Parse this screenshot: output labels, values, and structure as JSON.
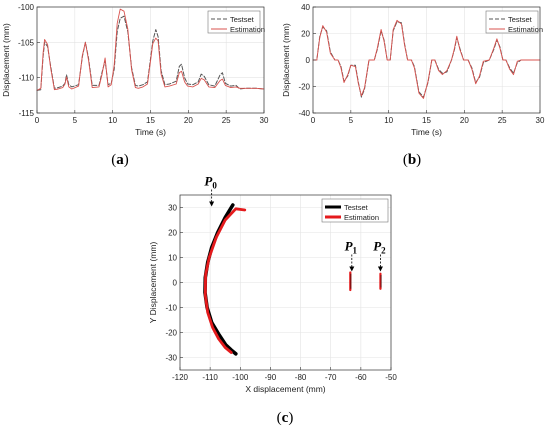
{
  "chart_data": [
    {
      "panel": "(a)",
      "type": "line",
      "xlabel": "Time (s)",
      "ylabel": "Displacement (mm)",
      "xlim": [
        0,
        30
      ],
      "ylim": [
        -115,
        -100
      ],
      "xticks": [
        "0",
        "5",
        "10",
        "15",
        "20",
        "25",
        "30"
      ],
      "yticks": [
        "-115",
        "-110",
        "-105",
        "-100"
      ],
      "grid": true,
      "legend_position": "top-right",
      "series": [
        {
          "name": "Testset",
          "style": "dashed",
          "color": "#555555",
          "x": [
            0,
            0.5,
            0.8,
            1.0,
            1.4,
            1.8,
            2.3,
            2.8,
            3.4,
            3.7,
            3.9,
            4.2,
            4.6,
            5.5,
            6.0,
            6.4,
            6.8,
            7.3,
            8.2,
            8.6,
            9.0,
            9.4,
            9.8,
            10.2,
            10.6,
            11.0,
            11.5,
            12.0,
            12.5,
            13.0,
            13.4,
            14.0,
            14.6,
            15.3,
            15.7,
            16.0,
            16.4,
            16.9,
            17.5,
            18.4,
            18.8,
            19.1,
            19.5,
            19.9,
            20.6,
            21.3,
            21.7,
            22.1,
            22.7,
            23.5,
            24.2,
            24.5,
            24.9,
            25.6,
            26.3,
            26.8,
            27.5,
            29.0,
            30.0
          ],
          "y": [
            -111.8,
            -111.7,
            -107.0,
            -105.0,
            -105.6,
            -108.3,
            -111.5,
            -111.4,
            -111.2,
            -110.8,
            -109.6,
            -111.0,
            -111.3,
            -111.0,
            -107.0,
            -105.0,
            -107.2,
            -111.1,
            -111.1,
            -109.2,
            -107.6,
            -111.0,
            -110.8,
            -108.8,
            -103.5,
            -101.6,
            -101.3,
            -103.5,
            -108.6,
            -111.1,
            -111.2,
            -111.0,
            -110.6,
            -104.8,
            -103.2,
            -104.2,
            -109.0,
            -111.0,
            -110.9,
            -110.5,
            -108.4,
            -108.1,
            -110.0,
            -110.9,
            -111.0,
            -110.6,
            -109.5,
            -109.8,
            -111.0,
            -111.2,
            -109.6,
            -109.3,
            -110.8,
            -111.2,
            -111.1,
            -111.6,
            -111.5,
            -111.5,
            -111.6
          ]
        },
        {
          "name": "Estimation",
          "style": "solid",
          "color": "#d9534f",
          "x": [
            0,
            0.5,
            0.8,
            1.0,
            1.4,
            1.8,
            2.3,
            2.8,
            3.4,
            3.7,
            3.9,
            4.2,
            4.6,
            5.5,
            6.0,
            6.4,
            6.8,
            7.3,
            8.2,
            8.6,
            9.0,
            9.4,
            9.8,
            10.2,
            10.6,
            11.0,
            11.5,
            12.0,
            12.5,
            13.0,
            13.4,
            14.0,
            14.6,
            15.3,
            15.7,
            16.0,
            16.4,
            16.9,
            17.5,
            18.4,
            18.8,
            19.1,
            19.5,
            19.9,
            20.6,
            21.3,
            21.7,
            22.1,
            22.7,
            23.5,
            24.2,
            24.5,
            24.9,
            25.6,
            26.3,
            26.8,
            27.5,
            29.0,
            30.0
          ],
          "y": [
            -111.8,
            -111.5,
            -106.5,
            -104.6,
            -105.3,
            -108.6,
            -111.7,
            -111.6,
            -111.4,
            -110.9,
            -109.9,
            -111.3,
            -111.6,
            -111.2,
            -106.8,
            -105.0,
            -107.5,
            -111.4,
            -111.3,
            -109.5,
            -107.2,
            -111.3,
            -111.0,
            -108.2,
            -102.3,
            -100.3,
            -100.6,
            -103.1,
            -108.9,
            -111.4,
            -111.5,
            -111.3,
            -110.9,
            -105.2,
            -104.4,
            -104.8,
            -109.5,
            -111.3,
            -111.2,
            -110.9,
            -109.3,
            -109.1,
            -110.6,
            -111.2,
            -111.3,
            -110.9,
            -110.1,
            -110.3,
            -111.3,
            -111.4,
            -110.4,
            -110.2,
            -111.1,
            -111.4,
            -111.3,
            -111.5,
            -111.5,
            -111.5,
            -111.6
          ]
        }
      ]
    },
    {
      "panel": "(b)",
      "type": "line",
      "xlabel": "Time (s)",
      "ylabel": "Displacement (mm)",
      "xlim": [
        0,
        30
      ],
      "ylim": [
        -40,
        40
      ],
      "xticks": [
        "0",
        "5",
        "10",
        "15",
        "20",
        "25",
        "30"
      ],
      "yticks": [
        "-40",
        "-20",
        "0",
        "20",
        "40"
      ],
      "grid": true,
      "legend_position": "top-right",
      "series": [
        {
          "name": "Testset",
          "style": "dashed",
          "color": "#555555",
          "x": [
            0,
            0.5,
            0.9,
            1.3,
            1.8,
            2.3,
            2.9,
            3.3,
            3.7,
            4.1,
            4.6,
            5.0,
            5.6,
            6.0,
            6.4,
            6.8,
            7.4,
            8.1,
            8.5,
            9.0,
            9.4,
            9.8,
            10.2,
            10.6,
            11.1,
            11.7,
            12.1,
            12.5,
            13.0,
            13.4,
            14.0,
            14.6,
            15.2,
            15.7,
            16.1,
            16.6,
            17.1,
            17.7,
            18.3,
            18.7,
            19.0,
            19.4,
            19.9,
            20.5,
            21.0,
            21.5,
            22.0,
            22.5,
            23.3,
            23.9,
            24.3,
            24.7,
            25.1,
            25.5,
            26.0,
            26.5,
            27.0,
            27.5,
            28.0,
            29.0,
            30.0
          ],
          "y": [
            0,
            0,
            18,
            25,
            22,
            6,
            0,
            0,
            -5,
            -16,
            -12,
            -4,
            -4,
            -17,
            -28,
            -22,
            0,
            0,
            8,
            22,
            15,
            0,
            0,
            22,
            29,
            28,
            12,
            0,
            0,
            -5,
            -24,
            -28,
            -17,
            0,
            0,
            -7,
            -10,
            -9,
            0,
            8,
            17,
            9,
            0,
            0,
            -6,
            -17,
            -13,
            -2,
            0,
            8,
            15,
            10,
            0,
            0,
            -6,
            -10,
            -2,
            0,
            0,
            0,
            0
          ]
        },
        {
          "name": "Estimation",
          "style": "solid",
          "color": "#d9534f",
          "x": [
            0,
            0.5,
            0.9,
            1.3,
            1.8,
            2.3,
            2.9,
            3.3,
            3.7,
            4.1,
            4.6,
            5.0,
            5.6,
            6.0,
            6.4,
            6.8,
            7.4,
            8.1,
            8.5,
            9.0,
            9.4,
            9.8,
            10.2,
            10.6,
            11.1,
            11.7,
            12.1,
            12.5,
            13.0,
            13.4,
            14.0,
            14.6,
            15.2,
            15.7,
            16.1,
            16.6,
            17.1,
            17.7,
            18.3,
            18.7,
            19.0,
            19.4,
            19.9,
            20.5,
            21.0,
            21.5,
            22.0,
            22.5,
            23.3,
            23.9,
            24.3,
            24.7,
            25.1,
            25.5,
            26.0,
            26.5,
            27.0,
            27.5,
            28.0,
            29.0,
            30.0
          ],
          "y": [
            0,
            0,
            17,
            26,
            21,
            5,
            0,
            0,
            -6,
            -17,
            -11,
            -4,
            -5,
            -18,
            -27,
            -21,
            0,
            0,
            9,
            23,
            14,
            0,
            0,
            23,
            30,
            27,
            11,
            0,
            0,
            -6,
            -25,
            -29,
            -16,
            0,
            0,
            -8,
            -11,
            -8,
            0,
            9,
            18,
            8,
            0,
            0,
            -7,
            -18,
            -12,
            -1,
            0,
            9,
            16,
            9,
            0,
            0,
            -7,
            -11,
            -1,
            0,
            0,
            0,
            0
          ]
        }
      ]
    },
    {
      "panel": "(c)",
      "type": "line",
      "xlabel": "X displacement (mm)",
      "ylabel": "Y Displacement (mm)",
      "xlim": [
        -120,
        -50
      ],
      "ylim": [
        -35,
        35
      ],
      "xticks": [
        "-120",
        "-110",
        "-100",
        "-90",
        "-80",
        "-70",
        "-60",
        "-50"
      ],
      "yticks": [
        "-30",
        "-20",
        "-10",
        "0",
        "10",
        "20",
        "30"
      ],
      "grid": true,
      "legend_position": "top-right",
      "annotations": [
        {
          "label": "P",
          "sub": "0",
          "x": -109.5,
          "y": 30
        },
        {
          "label": "P",
          "sub": "1",
          "x": -63,
          "y": 4
        },
        {
          "label": "P",
          "sub": "2",
          "x": -53.5,
          "y": 4
        }
      ],
      "series": [
        {
          "name": "Testset",
          "color": "#000000",
          "x": [
            -102.5,
            -105,
            -107.5,
            -109.5,
            -110.8,
            -111.6,
            -111.7,
            -111.0,
            -109.5,
            -107.0,
            -104.8,
            -103.0,
            -101.5
          ],
          "y": [
            31,
            26,
            20,
            14,
            8,
            2,
            -4,
            -10,
            -16,
            -21,
            -25,
            -27,
            -28.5
          ]
        },
        {
          "name": "Estimation",
          "color": "#e41a1c",
          "x": [
            -98.5,
            -101.5,
            -105,
            -108,
            -110.3,
            -111.5,
            -111.6,
            -110.8,
            -109.2,
            -107.2,
            -105.0,
            -103.0
          ],
          "y": [
            29,
            29.5,
            25,
            18,
            10,
            3,
            -5,
            -12,
            -18,
            -22.5,
            -26,
            -28
          ]
        }
      ],
      "clusters": [
        {
          "x": -63.5,
          "y_range": [
            -3,
            4
          ]
        },
        {
          "x": -53.5,
          "y_range": [
            -2.5,
            3.5
          ]
        }
      ]
    }
  ]
}
